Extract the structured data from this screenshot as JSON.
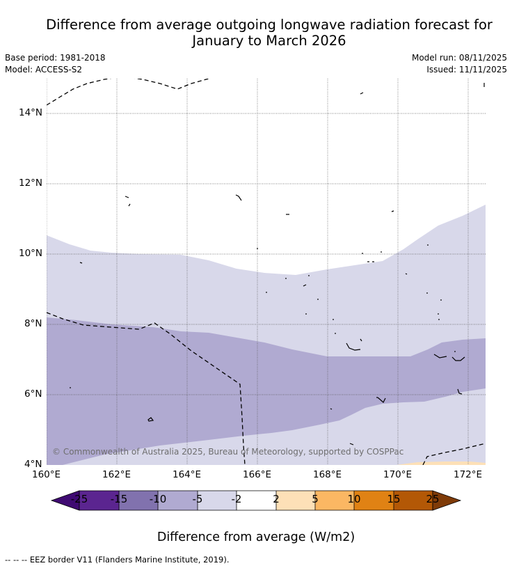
{
  "title_line1": "Difference from average outgoing longwave radiation forecast for",
  "title_line2": "January to March 2026",
  "base_period": "Base period: 1981-2018",
  "model": "Model: ACCESS-S2",
  "model_run": "Model run: 08/11/2025",
  "issued": "Issued: 11/11/2025",
  "lat_labels": [
    "14°N",
    "12°N",
    "10°N",
    "8°N",
    "6°N",
    "4°N"
  ],
  "lon_labels": [
    "160°E",
    "162°E",
    "164°E",
    "166°E",
    "168°E",
    "170°E",
    "172°E"
  ],
  "copyright": "© Commonwealth of Australia 2025, Bureau of Meteorology, supported by COSPPac",
  "colorbar": {
    "ticks": [
      "-25",
      "-15",
      "-10",
      "-5",
      "-2",
      "2",
      "5",
      "10",
      "15",
      "25"
    ],
    "colors": [
      "#3f0a72",
      "#5b2590",
      "#8172ae",
      "#b0aad1",
      "#d8d8ea",
      "#ffffff",
      "#fde0b7",
      "#fbb763",
      "#e08214",
      "#b35806",
      "#7f3b08"
    ],
    "label": "Difference from average (W/m2)"
  },
  "footer": "-- -- -- EEZ border V11 (Flanders Marine Institute, 2019)."
}
